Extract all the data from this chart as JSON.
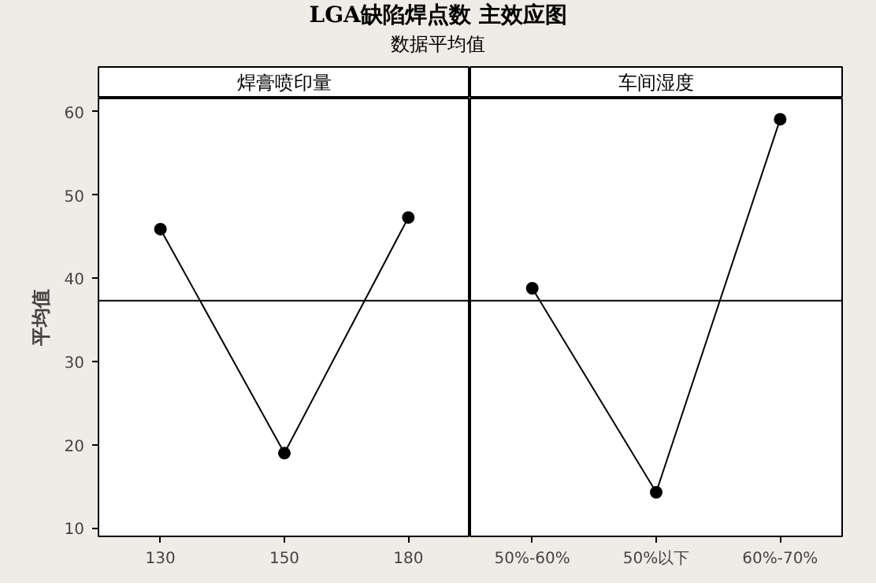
{
  "chart_data": [
    {
      "type": "line",
      "title": "LGA缺陷焊点数 主效应图",
      "subtitle": "数据平均值",
      "ylabel": "平均值",
      "annotations": [
        "焊膏喷印量"
      ],
      "categories": [
        "130",
        "150",
        "180"
      ],
      "series": [
        {
          "color": "#000000",
          "values": [
            45.9,
            19.0,
            47.3
          ]
        }
      ],
      "ylim": [
        9,
        61.6
      ],
      "yticks": [
        10,
        20,
        30,
        40,
        50,
        60
      ],
      "ref_lines": [
        {
          "axis": "y",
          "value": 37.3,
          "color": "#000000"
        }
      ],
      "marker": "circle",
      "line_style": "solid",
      "grid": false
    },
    {
      "type": "line",
      "annotations": [
        "车间湿度"
      ],
      "categories": [
        "50%-60%",
        "50%以下",
        "60%-70%"
      ],
      "series": [
        {
          "color": "#000000",
          "values": [
            38.8,
            14.3,
            59.1
          ]
        }
      ],
      "ylim": [
        9,
        61.6
      ],
      "yticks": [
        10,
        20,
        30,
        40,
        50,
        60
      ],
      "ref_lines": [
        {
          "axis": "y",
          "value": 37.3,
          "color": "#000000"
        }
      ],
      "marker": "circle",
      "line_style": "solid",
      "grid": false,
      "tick_labels": "x"
    }
  ]
}
